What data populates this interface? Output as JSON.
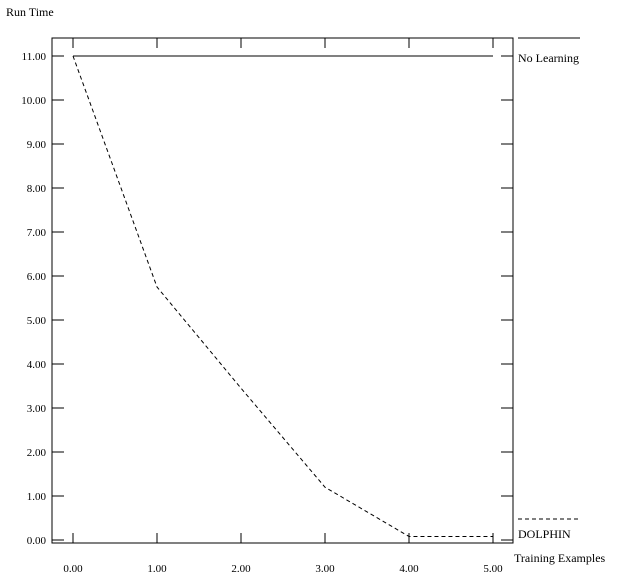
{
  "chart_data": {
    "type": "line",
    "title": "",
    "xlabel": "Training Examples",
    "ylabel": "Run Time",
    "x": [
      0,
      1,
      2,
      3,
      4,
      5
    ],
    "xlim": [
      0,
      5
    ],
    "ylim": [
      0,
      11
    ],
    "grid": false,
    "legend_position": "right",
    "x_ticks": [
      "0.00",
      "1.00",
      "2.00",
      "3.00",
      "4.00",
      "5.00"
    ],
    "y_ticks": [
      "0.00",
      "1.00",
      "2.00",
      "3.00",
      "4.00",
      "5.00",
      "6.00",
      "7.00",
      "8.00",
      "9.00",
      "10.00",
      "11.00"
    ],
    "series": [
      {
        "name": "No Learning",
        "style": "solid",
        "values": [
          11,
          11,
          11,
          11,
          11,
          11
        ]
      },
      {
        "name": "DOLPHIN",
        "style": "dashed",
        "values": [
          11,
          5.75,
          3.45,
          1.2,
          0.08,
          0.08
        ]
      }
    ],
    "colors": {
      "line": "#000000",
      "background": "#ffffff"
    }
  }
}
